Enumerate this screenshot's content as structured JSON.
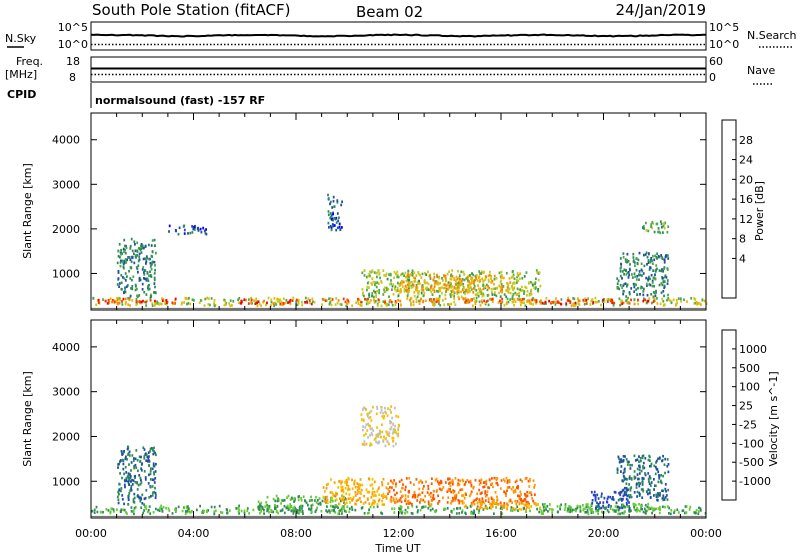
{
  "header": {
    "title": "South Pole Station (fitACF)",
    "beam": "Beam 02",
    "date": "24/Jan/2019"
  },
  "noise_panel": {
    "left_label": "N.Sky",
    "left_ticks": [
      "10^5",
      "10^0"
    ],
    "right_label": "N.Search",
    "right_ticks": [
      "10^5",
      "10^0"
    ]
  },
  "freq_panel": {
    "left_label_1": "Freq.",
    "left_label_2": "[MHz]",
    "left_ticks": [
      "18",
      "8"
    ],
    "right_label": "Nave",
    "right_ticks": [
      "60",
      "0"
    ]
  },
  "cpid": {
    "label": "CPID",
    "text": "normalsound (fast) -157 RF"
  },
  "colorbars": {
    "power": {
      "label": "Power [dB]",
      "ticks": [
        "28",
        "24",
        "20",
        "16",
        "12",
        "8",
        "4"
      ],
      "colors": [
        "#0000ff",
        "#1e4fa0",
        "#2e8b57",
        "#4aa84a",
        "#c8c820",
        "#f0b000",
        "#ff7f00",
        "#ff3300",
        "#ee0000"
      ]
    },
    "velocity": {
      "label": "Velocity [m s^-1]",
      "ticks": [
        "1000",
        "500",
        "100",
        "25",
        "-25",
        "-100",
        "-500",
        "-1000"
      ],
      "colors": [
        "#ee0000",
        "#ff5500",
        "#ff9900",
        "#f5c000",
        "#c0c0c0",
        "#66cc33",
        "#2e8b57",
        "#1e4fa0",
        "#2a3fd0"
      ]
    }
  },
  "chart_data": [
    {
      "type": "heatmap",
      "name": "power",
      "ylabel": "Slant Range [km]",
      "xlabel": "",
      "ylim": [
        180,
        4600
      ],
      "yticks": [
        "4000",
        "3000",
        "2000",
        "1000"
      ],
      "xlim_hours": [
        0,
        24
      ],
      "value_unit": "dB",
      "regions": [
        {
          "t": [
            0.0,
            24.0
          ],
          "r": [
            300,
            480
          ],
          "value": 16
        },
        {
          "t": [
            0.2,
            3.3
          ],
          "r": [
            350,
            460
          ],
          "value": 26
        },
        {
          "t": [
            5.8,
            8.6
          ],
          "r": [
            340,
            440
          ],
          "value": 28
        },
        {
          "t": [
            9.0,
            17.5
          ],
          "r": [
            380,
            460
          ],
          "value": 24
        },
        {
          "t": [
            17.5,
            22.0
          ],
          "r": [
            340,
            440
          ],
          "value": 28
        },
        {
          "t": [
            10.5,
            17.5
          ],
          "r": [
            500,
            1100
          ],
          "value": 14
        },
        {
          "t": [
            12.0,
            16.5
          ],
          "r": [
            600,
            1000
          ],
          "value": 20
        },
        {
          "t": [
            1.0,
            2.5
          ],
          "r": [
            500,
            1800
          ],
          "value": 8
        },
        {
          "t": [
            3.0,
            4.5
          ],
          "r": [
            1900,
            2100
          ],
          "value": 6
        },
        {
          "t": [
            9.2,
            9.8
          ],
          "r": [
            2000,
            2800
          ],
          "value": 6
        },
        {
          "t": [
            20.5,
            22.5
          ],
          "r": [
            500,
            1500
          ],
          "value": 9
        },
        {
          "t": [
            21.5,
            22.5
          ],
          "r": [
            1900,
            2200
          ],
          "value": 12
        }
      ]
    },
    {
      "type": "heatmap",
      "name": "velocity",
      "ylabel": "Slant Range [km]",
      "xlabel": "Time UT",
      "ylim": [
        180,
        4600
      ],
      "yticks": [
        "4000",
        "3000",
        "2000",
        "1000"
      ],
      "xlim_hours": [
        0,
        24
      ],
      "xticks": [
        "00:00",
        "04:00",
        "08:00",
        "12:00",
        "16:00",
        "20:00",
        "00:00"
      ],
      "value_unit": "m s^-1",
      "regions": [
        {
          "t": [
            0.0,
            24.0
          ],
          "r": [
            300,
            480
          ],
          "value": 100
        },
        {
          "t": [
            6.5,
            10.0
          ],
          "r": [
            340,
            700
          ],
          "value": 100
        },
        {
          "t": [
            9.0,
            11.5
          ],
          "r": [
            500,
            1100
          ],
          "value": -100
        },
        {
          "t": [
            11.5,
            17.3
          ],
          "r": [
            500,
            1100
          ],
          "value": -500
        },
        {
          "t": [
            14.5,
            17.5
          ],
          "r": [
            380,
            560
          ],
          "value": -100
        },
        {
          "t": [
            17.5,
            22.0
          ],
          "r": [
            340,
            520
          ],
          "value": 100
        },
        {
          "t": [
            19.5,
            21.0
          ],
          "r": [
            400,
            800
          ],
          "value": 1000
        },
        {
          "t": [
            1.0,
            2.5
          ],
          "r": [
            500,
            1800
          ],
          "value": 500
        },
        {
          "t": [
            10.5,
            12.0
          ],
          "r": [
            1800,
            2700
          ],
          "value": -25
        },
        {
          "t": [
            20.5,
            22.5
          ],
          "r": [
            600,
            1600
          ],
          "value": 500
        }
      ]
    }
  ]
}
